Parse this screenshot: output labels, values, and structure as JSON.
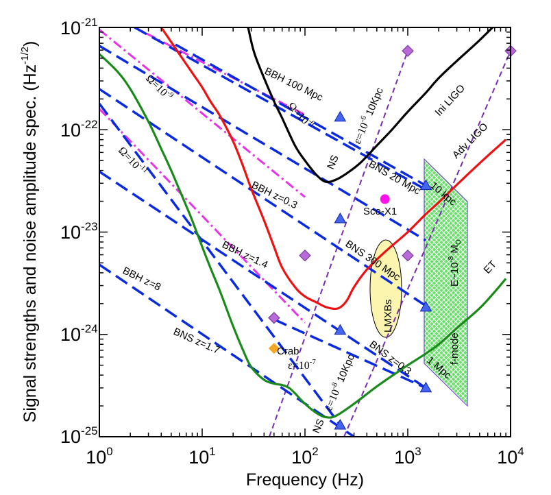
{
  "chart_data": {
    "type": "line",
    "xlabel": "Frequency (Hz)",
    "ylabel": "Signal strengths and noise amplitude spec. (Hz",
    "ylabel_exp": "-1/2",
    "ylabel_close": ")",
    "xscale": "log",
    "yscale": "log",
    "xlim": [
      1,
      10000
    ],
    "ylim": [
      1e-25,
      1e-21
    ],
    "grid": false,
    "x_ticks": [
      {
        "value": 1,
        "base": "10",
        "exp": "0"
      },
      {
        "value": 10,
        "base": "10",
        "exp": "1"
      },
      {
        "value": 100,
        "base": "10",
        "exp": "2"
      },
      {
        "value": 1000,
        "base": "10",
        "exp": "3"
      },
      {
        "value": 10000,
        "base": "10",
        "exp": "4"
      }
    ],
    "y_ticks": [
      {
        "value": 1e-25,
        "base": "10",
        "exp": "-25"
      },
      {
        "value": 1e-24,
        "base": "10",
        "exp": "-24"
      },
      {
        "value": 1e-23,
        "base": "10",
        "exp": "-23"
      },
      {
        "value": 1e-22,
        "base": "10",
        "exp": "-22"
      },
      {
        "value": 1e-21,
        "base": "10",
        "exp": "-21"
      }
    ],
    "noise_curves": [
      {
        "name": "Ini LIGO",
        "color": "#000000",
        "x": [
          28,
          32,
          40,
          50,
          60,
          80,
          100,
          130,
          160,
          200,
          260,
          350,
          500,
          700,
          1000,
          1500,
          2000,
          3000,
          5000,
          8000
        ],
        "y": [
          1e-21,
          5.7e-22,
          3.2e-22,
          1.9e-22,
          1.3e-22,
          7e-23,
          5e-23,
          3.6e-23,
          3.1e-23,
          3.25e-23,
          3.8e-23,
          4.8e-23,
          7e-23,
          1e-22,
          1.5e-22,
          2.3e-22,
          3.2e-22,
          4.7e-22,
          7.5e-22,
          1.2e-21
        ]
      },
      {
        "name": "Adv LIGO",
        "color": "#ee1111",
        "x": [
          4,
          5,
          6,
          8,
          10,
          12,
          15,
          20,
          25,
          30,
          40,
          50,
          60,
          80,
          100,
          130,
          160,
          200,
          230,
          260,
          300,
          400,
          600,
          1000,
          1500,
          2000,
          3000,
          5000,
          7000,
          9000
        ],
        "y": [
          1e-21,
          7.2e-22,
          5.5e-22,
          3.6e-22,
          2.6e-22,
          1.9e-22,
          1.35e-22,
          7.7e-23,
          4.4e-23,
          2.65e-23,
          1.3e-23,
          7.2e-24,
          4.5e-24,
          2.9e-24,
          2.35e-24,
          2.05e-24,
          1.85e-24,
          1.78e-24,
          1.9e-24,
          2.2e-24,
          2.9e-24,
          4.3e-24,
          6.4e-24,
          1e-23,
          1.5e-23,
          1.95e-23,
          2.9e-23,
          4.7e-23,
          6.4e-23,
          8e-23
        ]
      },
      {
        "name": "ET",
        "color": "#1a8a1a",
        "x": [
          1,
          1.5,
          2,
          3,
          4,
          5,
          6,
          7,
          8,
          10,
          12,
          15,
          20,
          25,
          30,
          40,
          50,
          60,
          70,
          80,
          100,
          130,
          160,
          200,
          300,
          500,
          800,
          1000,
          1500,
          2000,
          3000,
          5000,
          7000,
          9000
        ],
        "y": [
          5.5e-22,
          3.7e-22,
          2.5e-22,
          1.2e-22,
          6.5e-23,
          4e-23,
          2.6e-23,
          1.8e-23,
          1.3e-23,
          7.2e-24,
          4.5e-24,
          2.6e-24,
          1.2e-24,
          7e-25,
          4.8e-25,
          3.6e-25,
          3.3e-25,
          3.2e-25,
          3e-25,
          2.65e-25,
          2.1e-25,
          1.7e-25,
          1.55e-25,
          1.6e-25,
          2.1e-25,
          3.1e-25,
          4.3e-25,
          5e-25,
          6.5e-25,
          8e-25,
          1.15e-24,
          1.8e-24,
          2.6e-24,
          3.5e-24
        ]
      }
    ],
    "bbh_bns_lines": {
      "color": "#0a2ae0",
      "lines": [
        {
          "label": "BBH 100 Mpc",
          "x": [
            2.2,
            1500
          ],
          "y": [
            1e-21,
            2.6e-23
          ]
        },
        {
          "label": "BBH z=0.3",
          "x": [
            1,
            1500
          ],
          "y": [
            2.5e-22,
            1.9e-24
          ]
        },
        {
          "label": "BBH z=1.4",
          "x": [
            1,
            1500
          ],
          "y": [
            3.9e-23,
            3e-25
          ]
        },
        {
          "label": "BBH z=8",
          "x": [
            1,
            300
          ],
          "y": [
            4.8e-24,
            1e-25
          ]
        },
        {
          "label": "BNS 20 Mpc",
          "x": [
            5.5,
            1500
          ],
          "y": [
            6.8e-22,
            2.85e-23
          ]
        },
        {
          "label": "BNS 300 Mpc",
          "x": [
            1,
            1500
          ],
          "y": [
            6.6e-22,
            8.3e-24
          ]
        },
        {
          "label": "BNS z=1.7",
          "x": [
            1,
            220
          ],
          "y": [
            1.8e-22,
            1.3e-25
          ]
        },
        {
          "label": "BNS z=0.3",
          "x": [
            50,
            1500
          ],
          "y": [
            1.4e-24,
            3e-25
          ]
        }
      ],
      "triangle_markers": [
        {
          "x": 220,
          "y": 1.33e-22
        },
        {
          "x": 1500,
          "y": 2.85e-23
        },
        {
          "x": 220,
          "y": 1.35e-23
        },
        {
          "x": 1500,
          "y": 1.85e-24
        },
        {
          "x": 220,
          "y": 1.1e-24
        },
        {
          "x": 1500,
          "y": 3e-25
        },
        {
          "x": 220,
          "y": 1.3e-25
        }
      ]
    },
    "stochastic_lines": {
      "color": "#e533e5",
      "lines": [
        {
          "label": "Ω=10⁻⁶",
          "x": [
            2,
            100
          ],
          "y": [
            1.05e-21,
            1.4e-22
          ]
        },
        {
          "label": "Ω=10⁻⁹",
          "x": [
            1,
            100
          ],
          "y": [
            9.5e-22,
            2.2e-23
          ]
        },
        {
          "label": "Ω=10⁻¹¹",
          "x": [
            1,
            100
          ],
          "y": [
            1.6e-22,
            1.3e-24
          ]
        }
      ]
    },
    "pulsar_lines": {
      "color": "#7a2cb0",
      "lines": [
        {
          "label": "NS ε=10⁻⁶ 10Kpc",
          "x": [
            45,
            1000
          ],
          "y": [
            1e-25,
            5.9e-22
          ]
        },
        {
          "label": "NS ε=10⁻⁸ 10Kpc",
          "x": [
            240,
            10000
          ],
          "y": [
            1e-25,
            5.9e-22
          ]
        }
      ],
      "diamond_markers": [
        {
          "x": 1000,
          "y": 5.9e-22
        },
        {
          "x": 10000,
          "y": 5.9e-22
        },
        {
          "x": 100,
          "y": 5.9e-24
        },
        {
          "x": 1000,
          "y": 5.9e-24
        },
        {
          "x": 50,
          "y": 1.45e-24
        }
      ]
    },
    "sources": [
      {
        "label": "Sco-X1",
        "x": 600,
        "y": 2.1e-23,
        "color": "#ff11ee"
      },
      {
        "label": "Crab",
        "x": 50,
        "y": 7.3e-25,
        "color": "#f5a623"
      }
    ],
    "regions": [
      {
        "label": "LMXBs",
        "color": "#fbf5b0"
      },
      {
        "label": "f-mode",
        "color": "#55dd55"
      }
    ],
    "annotations": {
      "ini_ligo": "Ini LIGO",
      "adv_ligo": "Adv LIGO",
      "et": "ET",
      "bbh_100": "BBH 100 Mpc",
      "bbh_z03": "BBH z=0.3",
      "bbh_z14": "BBH z=1.4",
      "bbh_z8": "BBH z=8",
      "bns_20": "BNS 20 Mpc",
      "bns_300": "BNS 300 Mpc",
      "bns_z17": "BNS z=1.7",
      "bns_z03": "BNS z=0.3",
      "omega_base": "Ω=10",
      "omega_6": "-6",
      "omega_9": "-9",
      "omega_11": "-11",
      "ns_top": "NS",
      "eps_base": "ε=10",
      "eps_6": "-6",
      "ns_top_dist": "10Kpc",
      "ns_bottom": "NS",
      "eps_8": "-8",
      "ns_bottom_dist": "10Kpc",
      "eps_7": "-7",
      "sco_x1": "Sco-X1",
      "crab": "Crab",
      "lmxbs": "LMXBs",
      "fmode": "f-mode",
      "kpc_10": "10 kpc",
      "mpc_1": "1 Mpc",
      "e_mass": "E~10",
      "e_exp": "-8",
      "e_unit": "M",
      "e_sub": "O"
    }
  }
}
